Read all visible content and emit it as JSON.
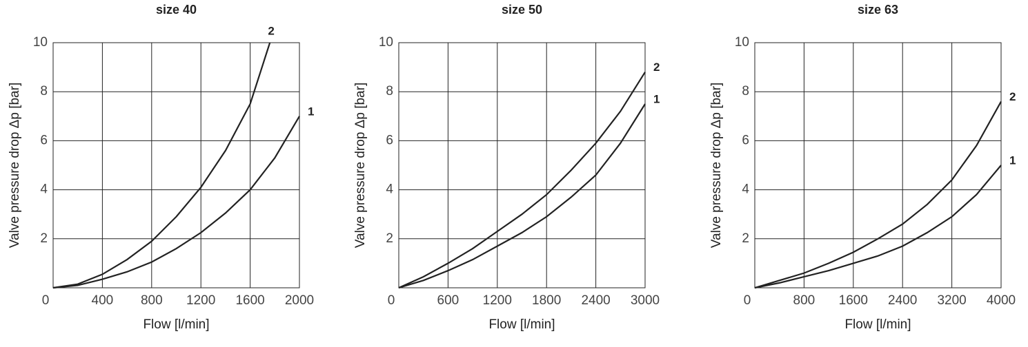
{
  "chart_data": [
    {
      "type": "line",
      "title": "size 40",
      "x_label": "Flow [l/min]",
      "y_label": "Valve pressure drop Δp [bar]",
      "xlim": [
        0,
        2000
      ],
      "xticks": [
        0,
        400,
        800,
        1200,
        1600,
        2000
      ],
      "ylim": [
        0,
        10
      ],
      "yticks": [
        2,
        4,
        6,
        8,
        10
      ],
      "grid": true,
      "series": [
        {
          "name": "1",
          "color": "#222222",
          "x": [
            0,
            200,
            400,
            600,
            800,
            1000,
            1200,
            1400,
            1600,
            1800,
            2000
          ],
          "values": [
            0,
            0.1,
            0.35,
            0.65,
            1.05,
            1.6,
            2.25,
            3.05,
            4.0,
            5.3,
            7.0
          ]
        },
        {
          "name": "2",
          "color": "#222222",
          "x": [
            0,
            200,
            400,
            600,
            800,
            1000,
            1200,
            1400,
            1600,
            1760
          ],
          "values": [
            0,
            0.15,
            0.55,
            1.15,
            1.9,
            2.9,
            4.1,
            5.6,
            7.5,
            10
          ]
        }
      ]
    },
    {
      "type": "line",
      "title": "size 50",
      "x_label": "Flow [l/min]",
      "y_label": "Valve pressure drop Δp [bar]",
      "xlim": [
        0,
        3000
      ],
      "xticks": [
        0,
        600,
        1200,
        1800,
        2400,
        3000
      ],
      "ylim": [
        0,
        10
      ],
      "yticks": [
        2,
        4,
        6,
        8,
        10
      ],
      "grid": true,
      "series": [
        {
          "name": "1",
          "color": "#222222",
          "x": [
            0,
            300,
            600,
            900,
            1200,
            1500,
            1800,
            2100,
            2400,
            2700,
            3000
          ],
          "values": [
            0,
            0.3,
            0.7,
            1.15,
            1.7,
            2.25,
            2.9,
            3.7,
            4.6,
            5.9,
            7.5
          ]
        },
        {
          "name": "2",
          "color": "#222222",
          "x": [
            0,
            300,
            600,
            900,
            1200,
            1500,
            1800,
            2100,
            2400,
            2700,
            3000
          ],
          "values": [
            0,
            0.45,
            1.0,
            1.6,
            2.3,
            3.0,
            3.8,
            4.8,
            5.9,
            7.2,
            8.8
          ]
        }
      ]
    },
    {
      "type": "line",
      "title": "size 63",
      "x_label": "Flow [l/min]",
      "y_label": "Valve pressure drop Δp [bar]",
      "xlim": [
        0,
        4000
      ],
      "xticks": [
        0,
        800,
        1600,
        2400,
        3200,
        4000
      ],
      "ylim": [
        0,
        10
      ],
      "yticks": [
        2,
        4,
        6,
        8,
        10
      ],
      "grid": true,
      "series": [
        {
          "name": "1",
          "color": "#222222",
          "x": [
            0,
            400,
            800,
            1200,
            1600,
            2000,
            2400,
            2800,
            3200,
            3600,
            4000
          ],
          "values": [
            0,
            0.2,
            0.45,
            0.7,
            1.0,
            1.3,
            1.7,
            2.25,
            2.9,
            3.8,
            5.0
          ]
        },
        {
          "name": "2",
          "color": "#222222",
          "x": [
            0,
            400,
            800,
            1200,
            1600,
            2000,
            2400,
            2800,
            3200,
            3600,
            4000
          ],
          "values": [
            0,
            0.3,
            0.6,
            1.0,
            1.45,
            2.0,
            2.6,
            3.4,
            4.4,
            5.8,
            7.6
          ]
        }
      ]
    }
  ]
}
